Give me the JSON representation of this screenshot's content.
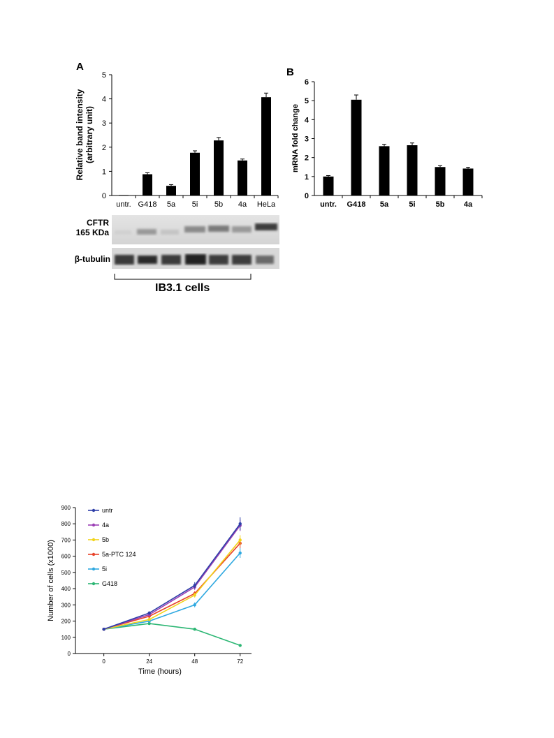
{
  "panel_a": {
    "letter": "A",
    "blot": {
      "cftr_label_line1": "CFTR",
      "cftr_label_line2": "165 KDa",
      "tubulin_label": "β-tubulin",
      "cells_label": "IB3.1 cells"
    }
  },
  "panel_b": {
    "letter": "B"
  },
  "chart_data": [
    {
      "type": "bar",
      "ylabel_line1": "Relative band intensity",
      "ylabel_line2": "(arbitrary unit)",
      "categories": [
        "untr.",
        "G418",
        "5a",
        "5i",
        "5b",
        "4a",
        "HeLa"
      ],
      "values": [
        0.02,
        0.88,
        0.4,
        1.77,
        2.28,
        1.45,
        4.07
      ],
      "errors": [
        0.0,
        0.06,
        0.05,
        0.08,
        0.12,
        0.06,
        0.17
      ],
      "ylim": [
        0,
        5
      ],
      "yticks": [
        0,
        1,
        2,
        3,
        4,
        5
      ],
      "bar_color": "#000000"
    },
    {
      "type": "bar",
      "ylabel": "mRNA fold change",
      "categories": [
        "untr.",
        "G418",
        "5a",
        "5i",
        "5b",
        "4a"
      ],
      "values": [
        1.0,
        5.05,
        2.6,
        2.65,
        1.5,
        1.42
      ],
      "errors": [
        0.05,
        0.25,
        0.1,
        0.12,
        0.07,
        0.07
      ],
      "ylim": [
        0,
        6
      ],
      "yticks": [
        0,
        1,
        2,
        3,
        4,
        5,
        6
      ],
      "bar_color": "#000000"
    },
    {
      "type": "line",
      "xlabel": "Time (hours)",
      "ylabel": "Number of cells (x1000)",
      "x": [
        0,
        24,
        48,
        72
      ],
      "xlim": [
        -15,
        78
      ],
      "ylim": [
        0,
        900
      ],
      "yticks": [
        0,
        100,
        200,
        300,
        400,
        500,
        600,
        700,
        800,
        900
      ],
      "xticks": [
        0,
        24,
        48,
        72
      ],
      "legend_position": "top-left",
      "series": [
        {
          "name": "untr",
          "values": [
            150,
            250,
            420,
            800
          ],
          "errors": [
            5,
            10,
            20,
            40
          ],
          "color": "#2e3fa8"
        },
        {
          "name": "4a",
          "values": [
            150,
            240,
            410,
            790
          ],
          "errors": [
            5,
            10,
            18,
            35
          ],
          "color": "#9b3fb5"
        },
        {
          "name": "5b",
          "values": [
            150,
            210,
            360,
            700
          ],
          "errors": [
            5,
            10,
            15,
            30
          ],
          "color": "#f2d41a"
        },
        {
          "name": "5a-PTC 124",
          "values": [
            150,
            230,
            370,
            680
          ],
          "errors": [
            5,
            10,
            15,
            30
          ],
          "color": "#e8432a"
        },
        {
          "name": "5i",
          "values": [
            150,
            200,
            300,
            620
          ],
          "errors": [
            5,
            10,
            15,
            30
          ],
          "color": "#2ea8e0"
        },
        {
          "name": "G418",
          "values": [
            150,
            185,
            150,
            50
          ],
          "errors": [
            5,
            8,
            5,
            5
          ],
          "color": "#2bb673"
        }
      ]
    }
  ]
}
